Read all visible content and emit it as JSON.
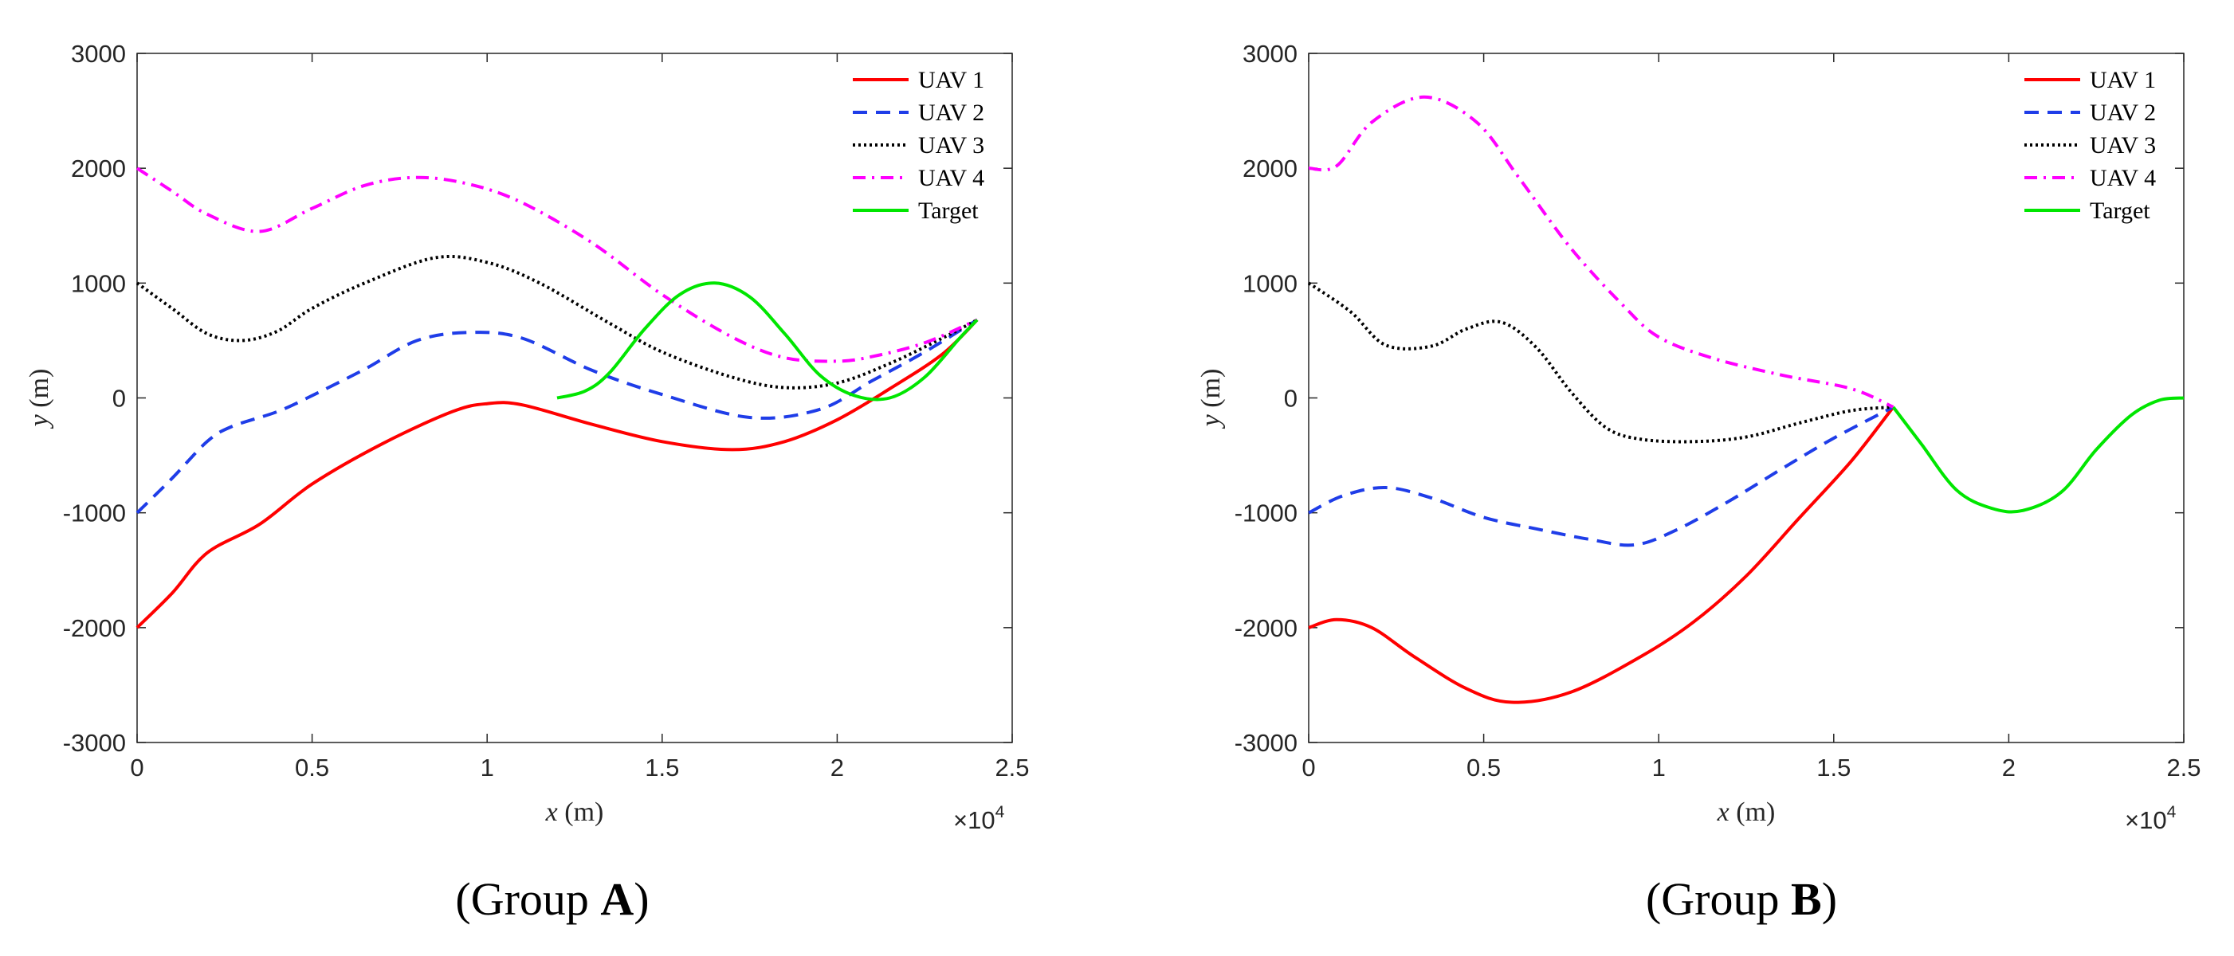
{
  "captions": [
    {
      "prefix": "(Group ",
      "bold": "A",
      "suffix": ")"
    },
    {
      "prefix": "(Group ",
      "bold": "B",
      "suffix": ")"
    }
  ],
  "chart_data": [
    {
      "type": "line",
      "title": "",
      "xlabel": {
        "var": "x",
        "unit": " (m)"
      },
      "ylabel": {
        "var": "y",
        "unit": " (m)"
      },
      "x_multiplier": {
        "base": "×10",
        "exp": "4"
      },
      "xlim": [
        0,
        25000
      ],
      "ylim": [
        -3000,
        3000
      ],
      "xticks": [
        0,
        5000,
        10000,
        15000,
        20000,
        25000
      ],
      "xtick_labels": [
        "0",
        "0.5",
        "1",
        "1.5",
        "2",
        "2.5"
      ],
      "yticks": [
        3000,
        2000,
        1000,
        0,
        -1000,
        -2000,
        -3000
      ],
      "ytick_labels": [
        "3000",
        "2000",
        "1000",
        "0",
        "-1000",
        "-2000",
        "-3000"
      ],
      "grid": false,
      "legend_position": "top-right",
      "series": [
        {
          "name": "UAV 1",
          "color": "#ff0000",
          "style": "solid",
          "x": [
            0,
            1000,
            2000,
            3500,
            5000,
            7000,
            9000,
            10000,
            11000,
            13000,
            15000,
            17000,
            18500,
            20000,
            21500,
            23000,
            24000
          ],
          "y": [
            -2000,
            -1700,
            -1350,
            -1100,
            -750,
            -400,
            -120,
            -50,
            -60,
            -230,
            -380,
            -450,
            -380,
            -190,
            80,
            380,
            680
          ]
        },
        {
          "name": "UAV 2",
          "color": "#1f3de8",
          "style": "dashed",
          "x": [
            0,
            1000,
            2000,
            2700,
            4000,
            5000,
            6500,
            8000,
            9500,
            11000,
            13000,
            15000,
            17500,
            19500,
            21000,
            22500,
            24000
          ],
          "y": [
            -1000,
            -700,
            -380,
            -250,
            -120,
            20,
            250,
            500,
            570,
            520,
            240,
            30,
            -170,
            -100,
            150,
            400,
            680
          ]
        },
        {
          "name": "UAV 3",
          "color": "#000000",
          "style": "dotted",
          "x": [
            0,
            1000,
            2000,
            3000,
            4000,
            5000,
            6500,
            8500,
            10000,
            11500,
            13500,
            15000,
            17000,
            18500,
            20000,
            21500,
            23000,
            24000
          ],
          "y": [
            1000,
            780,
            560,
            500,
            580,
            780,
            1000,
            1220,
            1180,
            1000,
            650,
            400,
            180,
            90,
            130,
            300,
            520,
            680
          ]
        },
        {
          "name": "UAV 4",
          "color": "#ff00ff",
          "style": "dashdot",
          "x": [
            0,
            1000,
            2000,
            3500,
            5000,
            6500,
            8000,
            9500,
            11000,
            13000,
            15000,
            17000,
            18500,
            20000,
            21000,
            22500,
            24000
          ],
          "y": [
            2000,
            1800,
            1600,
            1450,
            1650,
            1850,
            1920,
            1860,
            1700,
            1350,
            900,
            530,
            350,
            320,
            360,
            480,
            680
          ]
        },
        {
          "name": "Target",
          "color": "#00e600",
          "style": "solid",
          "x": [
            12000,
            12800,
            13500,
            14500,
            15500,
            16500,
            17500,
            18500,
            19500,
            20500,
            21500,
            22500,
            23500,
            24000
          ],
          "y": [
            0,
            60,
            220,
            600,
            900,
            1000,
            880,
            560,
            200,
            20,
            0,
            180,
            520,
            680
          ]
        }
      ]
    },
    {
      "type": "line",
      "title": "",
      "xlabel": {
        "var": "x",
        "unit": " (m)"
      },
      "ylabel": {
        "var": "y",
        "unit": " (m)"
      },
      "x_multiplier": {
        "base": "×10",
        "exp": "4"
      },
      "xlim": [
        0,
        25000
      ],
      "ylim": [
        -3000,
        3000
      ],
      "xticks": [
        0,
        5000,
        10000,
        15000,
        20000,
        25000
      ],
      "xtick_labels": [
        "0",
        "0.5",
        "1",
        "1.5",
        "2",
        "2.5"
      ],
      "yticks": [
        3000,
        2000,
        1000,
        0,
        -1000,
        -2000,
        -3000
      ],
      "ytick_labels": [
        "3000",
        "2000",
        "1000",
        "0",
        "-1000",
        "-2000",
        "-3000"
      ],
      "grid": false,
      "legend_position": "top-right",
      "series": [
        {
          "name": "UAV 1",
          "color": "#ff0000",
          "style": "solid",
          "x": [
            0,
            800,
            1800,
            3000,
            4500,
            5800,
            7500,
            9500,
            11000,
            12500,
            14000,
            15500,
            16700
          ],
          "y": [
            -2000,
            -1930,
            -2000,
            -2250,
            -2530,
            -2650,
            -2560,
            -2250,
            -1950,
            -1550,
            -1050,
            -550,
            -80
          ]
        },
        {
          "name": "UAV 2",
          "color": "#1f3de8",
          "style": "dashed",
          "x": [
            0,
            1000,
            2200,
            3500,
            5000,
            6500,
            8000,
            9300,
            10500,
            12000,
            13500,
            15000,
            16700
          ],
          "y": [
            -1000,
            -850,
            -780,
            -870,
            -1040,
            -1140,
            -1230,
            -1280,
            -1150,
            -900,
            -620,
            -350,
            -80
          ]
        },
        {
          "name": "UAV 3",
          "color": "#000000",
          "style": "dotted",
          "x": [
            0,
            1200,
            2200,
            3500,
            4500,
            5500,
            6500,
            7500,
            8500,
            9500,
            11000,
            12500,
            14000,
            15500,
            16700
          ],
          "y": [
            1000,
            750,
            460,
            450,
            600,
            660,
            440,
            50,
            -260,
            -360,
            -380,
            -340,
            -220,
            -110,
            -80
          ]
        },
        {
          "name": "UAV 4",
          "color": "#ff00ff",
          "style": "dashdot",
          "x": [
            0,
            800,
            1800,
            3300,
            4800,
            6000,
            7500,
            9000,
            10000,
            11500,
            13500,
            15500,
            16700
          ],
          "y": [
            2000,
            2020,
            2400,
            2620,
            2400,
            1920,
            1300,
            800,
            530,
            350,
            200,
            80,
            -80
          ]
        },
        {
          "name": "Target",
          "color": "#00e600",
          "style": "solid",
          "x": [
            16700,
            17500,
            18500,
            19500,
            20400,
            21500,
            22500,
            23500,
            24300,
            25000
          ],
          "y": [
            -80,
            -400,
            -800,
            -960,
            -980,
            -820,
            -450,
            -150,
            -20,
            0
          ]
        }
      ]
    }
  ]
}
